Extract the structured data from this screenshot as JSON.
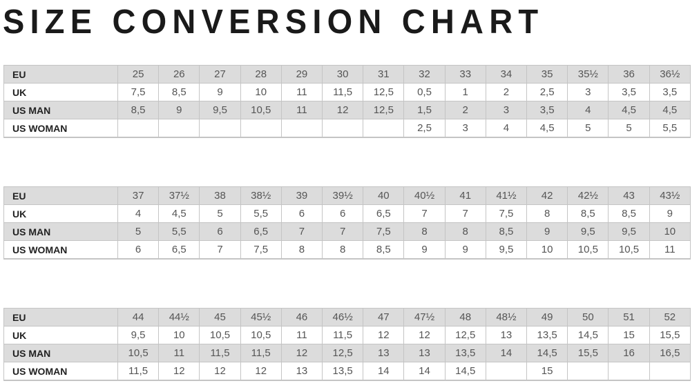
{
  "title": "SIZE CONVERSION CHART",
  "row_labels": [
    "EU",
    "UK",
    "US MAN",
    "US WOMAN"
  ],
  "tables": [
    {
      "rows": [
        [
          "25",
          "26",
          "27",
          "28",
          "29",
          "30",
          "31",
          "32",
          "33",
          "34",
          "35",
          "35½",
          "36",
          "36½"
        ],
        [
          "7,5",
          "8,5",
          "9",
          "10",
          "11",
          "11,5",
          "12,5",
          "0,5",
          "1",
          "2",
          "2,5",
          "3",
          "3,5",
          "3,5"
        ],
        [
          "8,5",
          "9",
          "9,5",
          "10,5",
          "11",
          "12",
          "12,5",
          "1,5",
          "2",
          "3",
          "3,5",
          "4",
          "4,5",
          "4,5"
        ],
        [
          "",
          "",
          "",
          "",
          "",
          "",
          "",
          "2,5",
          "3",
          "4",
          "4,5",
          "5",
          "5",
          "5,5"
        ]
      ]
    },
    {
      "rows": [
        [
          "37",
          "37½",
          "38",
          "38½",
          "39",
          "39½",
          "40",
          "40½",
          "41",
          "41½",
          "42",
          "42½",
          "43",
          "43½"
        ],
        [
          "4",
          "4,5",
          "5",
          "5,5",
          "6",
          "6",
          "6,5",
          "7",
          "7",
          "7,5",
          "8",
          "8,5",
          "8,5",
          "9"
        ],
        [
          "5",
          "5,5",
          "6",
          "6,5",
          "7",
          "7",
          "7,5",
          "8",
          "8",
          "8,5",
          "9",
          "9,5",
          "9,5",
          "10"
        ],
        [
          "6",
          "6,5",
          "7",
          "7,5",
          "8",
          "8",
          "8,5",
          "9",
          "9",
          "9,5",
          "10",
          "10,5",
          "10,5",
          "11"
        ]
      ]
    },
    {
      "rows": [
        [
          "44",
          "44½",
          "45",
          "45½",
          "46",
          "46½",
          "47",
          "47½",
          "48",
          "48½",
          "49",
          "50",
          "51",
          "52"
        ],
        [
          "9,5",
          "10",
          "10,5",
          "10,5",
          "11",
          "11,5",
          "12",
          "12",
          "12,5",
          "13",
          "13,5",
          "14,5",
          "15",
          "15,5"
        ],
        [
          "10,5",
          "11",
          "11,5",
          "11,5",
          "12",
          "12,5",
          "13",
          "13",
          "13,5",
          "14",
          "14,5",
          "15,5",
          "16",
          "16,5"
        ],
        [
          "11,5",
          "12",
          "12",
          "12",
          "13",
          "13,5",
          "14",
          "14",
          "14,5",
          "",
          "15",
          "",
          "",
          ""
        ]
      ]
    }
  ]
}
